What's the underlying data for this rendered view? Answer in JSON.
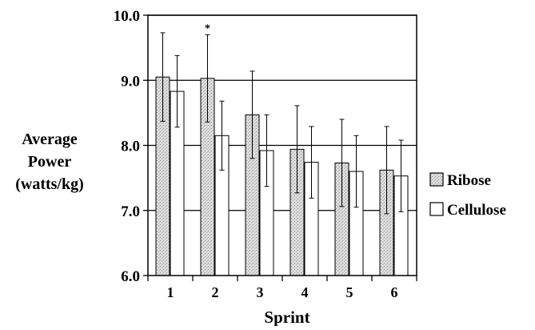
{
  "chart_data": {
    "type": "bar",
    "xlabel": "Sprint",
    "ylabel_lines": [
      "Average",
      "Power",
      "(watts/kg)"
    ],
    "ylim": [
      6.0,
      10.0
    ],
    "yticks": [
      "6.0",
      "7.0",
      "8.0",
      "9.0",
      "10.0"
    ],
    "ytick_values": [
      6.0,
      7.0,
      8.0,
      9.0,
      10.0
    ],
    "grid": "horizontal",
    "legend_position": "right",
    "categories": [
      "1",
      "2",
      "3",
      "4",
      "5",
      "6"
    ],
    "series": [
      {
        "name": "Ribose",
        "values": [
          9.05,
          9.03,
          8.47,
          7.94,
          7.73,
          7.62
        ],
        "error": [
          0.68,
          0.67,
          0.67,
          0.67,
          0.67,
          0.67
        ],
        "fill": "#d9d9d9"
      },
      {
        "name": "Cellulose",
        "values": [
          8.83,
          8.15,
          7.92,
          7.74,
          7.6,
          7.53
        ],
        "error": [
          0.55,
          0.53,
          0.55,
          0.55,
          0.55,
          0.55
        ],
        "fill": "#ffffff"
      }
    ],
    "annotations": [
      {
        "category": "2",
        "series": "Ribose",
        "text": "*"
      }
    ]
  }
}
